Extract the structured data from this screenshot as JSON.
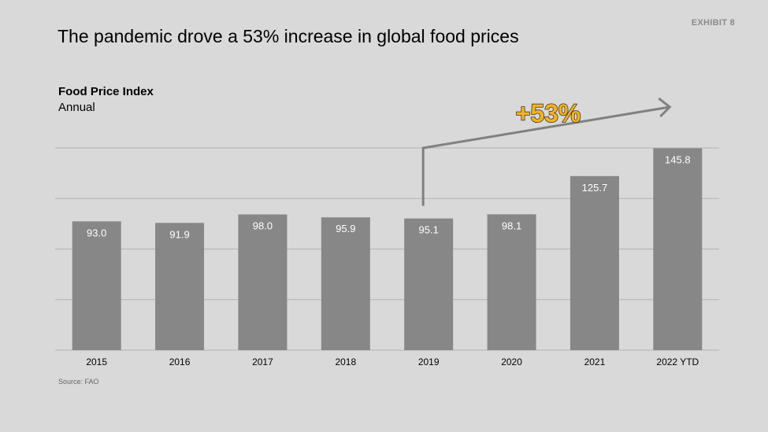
{
  "exhibit": "EXHIBIT 8",
  "title": "The pandemic drove a 53% increase in global food prices",
  "subtitle": "Food Price Index",
  "subtitle_note": "Annual",
  "source": "Source: FAO",
  "annotation": "+53%",
  "colors": {
    "background": "#d9d9d9",
    "bar": "#878787",
    "grid": "#b3b3b3",
    "arrow": "#808080",
    "annotation_fill": "#f5b21b",
    "annotation_stroke": "#333333"
  },
  "chart_data": {
    "type": "bar",
    "categories": [
      "2015",
      "2016",
      "2017",
      "2018",
      "2019",
      "2020",
      "2021",
      "2022 YTD"
    ],
    "values": [
      93.0,
      91.9,
      98.0,
      95.9,
      95.1,
      98.1,
      125.7,
      145.8
    ],
    "value_labels": [
      "93.0",
      "91.9",
      "98.0",
      "95.9",
      "95.1",
      "98.1",
      "125.7",
      "145.8"
    ],
    "title": "Food Price Index",
    "subtitle": "Annual",
    "ylim": [
      0,
      160
    ],
    "grid": true,
    "annotation": {
      "text": "+53%",
      "from": "2019",
      "to": "2022 YTD"
    }
  }
}
